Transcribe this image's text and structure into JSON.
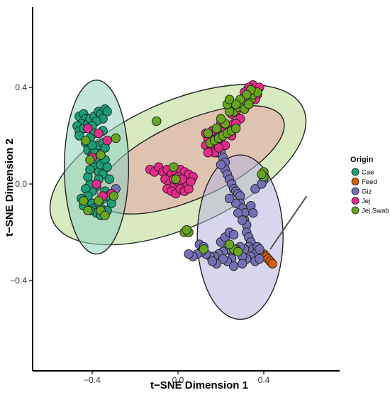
{
  "chart_data": {
    "type": "scatter",
    "xlabel": "t−SNE Dimension 1",
    "ylabel": "t−SNE Dimension 2",
    "xlim": [
      -0.62,
      0.65
    ],
    "ylim": [
      -0.78,
      0.75
    ],
    "x_ticks": [
      -0.4,
      0.0,
      0.4
    ],
    "y_ticks": [
      0.4,
      0.0,
      -0.4
    ],
    "x_tick_labels": [
      "−0.4",
      "0.0",
      "0.4"
    ],
    "y_tick_labels": [
      "0.4",
      "0.0",
      "−0.4"
    ],
    "grid": false,
    "legend": {
      "title": "Origin",
      "position": "right",
      "entries": [
        "Cae",
        "Feed",
        "Giz",
        "Jej",
        "Jej.Swab"
      ]
    },
    "ellipses": [
      {
        "group": "Jej.Swab",
        "cx": 0.0,
        "cy": 0.08,
        "rx": 0.64,
        "ry": 0.26,
        "angle_deg": 24,
        "fill": "#b8d98a"
      },
      {
        "group": "Jej",
        "cx": 0.06,
        "cy": 0.1,
        "rx": 0.47,
        "ry": 0.16,
        "angle_deg": 24,
        "fill": "#e6a2a6"
      },
      {
        "group": "Cae",
        "cx": -0.38,
        "cy": 0.07,
        "rx": 0.15,
        "ry": 0.36,
        "angle_deg": 0,
        "fill": "#8fd0c0"
      },
      {
        "group": "Giz",
        "cx": 0.29,
        "cy": -0.22,
        "rx": 0.2,
        "ry": 0.34,
        "angle_deg": 0,
        "fill": "#b8b4de"
      }
    ],
    "series": [
      {
        "name": "Cae",
        "color": "#1b9e77",
        "points": [
          [
            -0.46,
            0.28
          ],
          [
            -0.44,
            0.29
          ],
          [
            -0.43,
            0.27
          ],
          [
            -0.45,
            0.25
          ],
          [
            -0.47,
            0.24
          ],
          [
            -0.46,
            0.22
          ],
          [
            -0.44,
            0.23
          ],
          [
            -0.42,
            0.25
          ],
          [
            -0.41,
            0.27
          ],
          [
            -0.39,
            0.28
          ],
          [
            -0.37,
            0.3
          ],
          [
            -0.36,
            0.29
          ],
          [
            -0.34,
            0.31
          ],
          [
            -0.33,
            0.3
          ],
          [
            -0.35,
            0.27
          ],
          [
            -0.38,
            0.26
          ],
          [
            -0.4,
            0.24
          ],
          [
            -0.39,
            0.21
          ],
          [
            -0.41,
            0.19
          ],
          [
            -0.43,
            0.17
          ],
          [
            -0.42,
            0.14
          ],
          [
            -0.4,
            0.12
          ],
          [
            -0.39,
            0.14
          ],
          [
            -0.37,
            0.16
          ],
          [
            -0.35,
            0.17
          ],
          [
            -0.34,
            0.15
          ],
          [
            -0.36,
            0.12
          ],
          [
            -0.38,
            0.1
          ],
          [
            -0.39,
            0.07
          ],
          [
            -0.37,
            0.05
          ],
          [
            -0.36,
            0.08
          ],
          [
            -0.34,
            0.1
          ],
          [
            -0.33,
            0.07
          ],
          [
            -0.35,
            0.04
          ],
          [
            -0.37,
            0.02
          ],
          [
            -0.38,
            -0.01
          ],
          [
            -0.4,
            -0.03
          ],
          [
            -0.41,
            0.0
          ],
          [
            -0.42,
            0.03
          ],
          [
            -0.43,
            -0.02
          ],
          [
            -0.42,
            -0.05
          ],
          [
            -0.4,
            -0.08
          ],
          [
            -0.39,
            -0.1
          ],
          [
            -0.37,
            -0.08
          ],
          [
            -0.35,
            -0.06
          ],
          [
            -0.34,
            -0.03
          ],
          [
            -0.33,
            -0.05
          ],
          [
            -0.36,
            -0.1
          ],
          [
            -0.38,
            -0.12
          ],
          [
            -0.41,
            -0.11
          ],
          [
            -0.44,
            -0.09
          ],
          [
            -0.45,
            -0.06
          ],
          [
            -0.36,
            -0.13
          ],
          [
            -0.33,
            -0.11
          ],
          [
            -0.32,
            0.02
          ],
          [
            -0.31,
            -0.08
          ],
          [
            -0.4,
            0.16
          ],
          [
            -0.46,
            0.2
          ],
          [
            -0.35,
            0.22
          ],
          [
            -0.41,
            0.06
          ]
        ]
      },
      {
        "name": "Feed",
        "color": "#d95f02",
        "points": [
          [
            0.4,
            -0.29
          ],
          [
            0.41,
            -0.3
          ],
          [
            0.42,
            -0.31
          ],
          [
            0.43,
            -0.32
          ],
          [
            0.44,
            -0.33
          ]
        ]
      },
      {
        "name": "Giz",
        "color": "#7570b3",
        "points": [
          [
            0.2,
            0.13
          ],
          [
            0.21,
            0.11
          ],
          [
            0.22,
            0.09
          ],
          [
            0.22,
            0.06
          ],
          [
            0.23,
            0.04
          ],
          [
            0.24,
            0.02
          ],
          [
            0.25,
            0.0
          ],
          [
            0.26,
            -0.02
          ],
          [
            0.27,
            -0.03
          ],
          [
            0.28,
            -0.04
          ],
          [
            0.29,
            -0.05
          ],
          [
            0.29,
            -0.08
          ],
          [
            0.3,
            -0.1
          ],
          [
            0.31,
            -0.12
          ],
          [
            0.31,
            -0.15
          ],
          [
            0.32,
            -0.17
          ],
          [
            0.32,
            -0.2
          ],
          [
            0.33,
            -0.22
          ],
          [
            0.34,
            -0.24
          ],
          [
            0.33,
            -0.26
          ],
          [
            0.31,
            -0.27
          ],
          [
            0.29,
            -0.26
          ],
          [
            0.27,
            -0.27
          ],
          [
            0.25,
            -0.28
          ],
          [
            0.23,
            -0.27
          ],
          [
            0.21,
            -0.28
          ],
          [
            0.19,
            -0.29
          ],
          [
            0.17,
            -0.3
          ],
          [
            0.15,
            -0.3
          ],
          [
            0.13,
            -0.29
          ],
          [
            0.11,
            -0.28
          ],
          [
            0.09,
            -0.29
          ],
          [
            0.07,
            -0.3
          ],
          [
            0.05,
            -0.29
          ],
          [
            0.2,
            -0.24
          ],
          [
            0.22,
            -0.22
          ],
          [
            0.24,
            -0.2
          ],
          [
            0.26,
            -0.21
          ],
          [
            0.25,
            -0.31
          ],
          [
            0.23,
            -0.32
          ],
          [
            0.21,
            -0.31
          ],
          [
            0.18,
            -0.33
          ],
          [
            0.16,
            -0.32
          ],
          [
            0.35,
            -0.27
          ],
          [
            0.37,
            -0.26
          ],
          [
            0.38,
            -0.28
          ],
          [
            0.36,
            -0.29
          ],
          [
            0.34,
            -0.3
          ],
          [
            0.32,
            -0.31
          ],
          [
            0.3,
            -0.3
          ],
          [
            0.36,
            -0.32
          ],
          [
            0.38,
            -0.31
          ],
          [
            0.34,
            -0.09
          ],
          [
            0.35,
            -0.12
          ],
          [
            0.36,
            -0.02
          ],
          [
            0.18,
            0.13
          ],
          [
            0.17,
            0.14
          ],
          [
            0.1,
            -0.25
          ],
          [
            0.12,
            -0.26
          ],
          [
            0.26,
            -0.34
          ],
          [
            0.3,
            -0.33
          ],
          [
            0.2,
            0.08
          ],
          [
            0.27,
            -0.08
          ],
          [
            0.28,
            -0.12
          ],
          [
            0.24,
            -0.06
          ],
          [
            0.4,
            0.02
          ],
          [
            0.39,
            0.0
          ],
          [
            0.3,
            -0.15
          ],
          [
            0.38,
            -0.27
          ],
          [
            -0.29,
            -0.02
          ]
        ]
      },
      {
        "name": "Jej",
        "color": "#e7298a",
        "points": [
          [
            -0.42,
            0.23
          ],
          [
            -0.37,
            0.21
          ],
          [
            -0.4,
            0.11
          ],
          [
            -0.33,
            0.18
          ],
          [
            -0.38,
            0.0
          ],
          [
            -0.31,
            -0.04
          ],
          [
            -0.35,
            -0.05
          ],
          [
            -0.13,
            0.06
          ],
          [
            -0.11,
            0.05
          ],
          [
            -0.09,
            0.07
          ],
          [
            -0.07,
            0.05
          ],
          [
            -0.05,
            0.06
          ],
          [
            -0.03,
            0.04
          ],
          [
            -0.01,
            0.05
          ],
          [
            0.01,
            0.06
          ],
          [
            0.03,
            0.05
          ],
          [
            0.05,
            0.04
          ],
          [
            0.07,
            0.03
          ],
          [
            -0.06,
            0.02
          ],
          [
            -0.04,
            0.0
          ],
          [
            -0.02,
            -0.01
          ],
          [
            0.0,
            0.01
          ],
          [
            0.02,
            0.0
          ],
          [
            0.04,
            -0.01
          ],
          [
            -0.05,
            -0.02
          ],
          [
            -0.03,
            -0.03
          ],
          [
            -0.01,
            -0.04
          ],
          [
            0.01,
            -0.02
          ],
          [
            0.03,
            -0.03
          ],
          [
            0.05,
            -0.02
          ],
          [
            0.0,
            0.03
          ],
          [
            0.02,
            0.02
          ],
          [
            -0.02,
            0.02
          ],
          [
            0.06,
            0.01
          ],
          [
            0.17,
            0.2
          ],
          [
            0.19,
            0.21
          ],
          [
            0.21,
            0.2
          ],
          [
            0.2,
            0.17
          ],
          [
            0.22,
            0.16
          ],
          [
            0.18,
            0.16
          ],
          [
            0.15,
            0.17
          ],
          [
            0.14,
            0.19
          ],
          [
            0.13,
            0.16
          ],
          [
            0.15,
            0.14
          ],
          [
            0.17,
            0.13
          ],
          [
            0.19,
            0.15
          ],
          [
            0.22,
            0.23
          ],
          [
            0.24,
            0.24
          ],
          [
            0.26,
            0.25
          ],
          [
            0.2,
            0.25
          ],
          [
            0.18,
            0.23
          ],
          [
            0.25,
            0.29
          ],
          [
            0.27,
            0.3
          ],
          [
            0.29,
            0.32
          ],
          [
            0.3,
            0.34
          ],
          [
            0.32,
            0.36
          ],
          [
            0.34,
            0.38
          ],
          [
            0.36,
            0.39
          ],
          [
            0.35,
            0.41
          ],
          [
            0.33,
            0.4
          ],
          [
            0.31,
            0.38
          ],
          [
            0.37,
            0.37
          ],
          [
            0.38,
            0.4
          ],
          [
            0.36,
            0.35
          ],
          [
            0.29,
            0.27
          ],
          [
            0.27,
            0.25
          ],
          [
            0.16,
            0.22
          ],
          [
            0.14,
            0.13
          ],
          [
            0.13,
            0.21
          ],
          [
            0.25,
            0.2
          ],
          [
            0.23,
            0.21
          ]
        ]
      },
      {
        "name": "Jej.Swab",
        "color": "#66a61e",
        "points": [
          [
            -0.41,
            0.1
          ],
          [
            -0.43,
            0.18
          ],
          [
            -0.36,
            0.12
          ],
          [
            -0.42,
            -0.11
          ],
          [
            -0.37,
            -0.07
          ],
          [
            -0.36,
            -0.11
          ],
          [
            -0.3,
            -0.05
          ],
          [
            -0.34,
            -0.13
          ],
          [
            -0.44,
            -0.07
          ],
          [
            -0.29,
            0.19
          ],
          [
            -0.1,
            0.26
          ],
          [
            -0.02,
            0.07
          ],
          [
            -0.01,
            0.02
          ],
          [
            0.03,
            -0.2
          ],
          [
            0.05,
            -0.2
          ],
          [
            0.04,
            -0.19
          ],
          [
            0.12,
            -0.27
          ],
          [
            0.15,
            0.17
          ],
          [
            0.17,
            0.18
          ],
          [
            0.19,
            0.19
          ],
          [
            0.21,
            0.2
          ],
          [
            0.23,
            0.21
          ],
          [
            0.25,
            0.22
          ],
          [
            0.27,
            0.23
          ],
          [
            0.14,
            0.21
          ],
          [
            0.18,
            0.23
          ],
          [
            0.22,
            0.25
          ],
          [
            0.26,
            0.3
          ],
          [
            0.28,
            0.32
          ],
          [
            0.3,
            0.33
          ],
          [
            0.32,
            0.34
          ],
          [
            0.34,
            0.35
          ],
          [
            0.35,
            0.37
          ],
          [
            0.37,
            0.38
          ],
          [
            0.34,
            0.39
          ],
          [
            0.32,
            0.37
          ],
          [
            0.29,
            0.35
          ],
          [
            0.27,
            0.33
          ],
          [
            0.24,
            0.3
          ],
          [
            0.23,
            0.33
          ],
          [
            0.24,
            0.35
          ],
          [
            0.31,
            0.31
          ],
          [
            0.33,
            0.33
          ],
          [
            0.2,
            0.27
          ],
          [
            0.4,
            0.05
          ],
          [
            0.4,
            0.03
          ],
          [
            0.39,
            0.04
          ],
          [
            0.26,
            -0.27
          ],
          [
            0.28,
            -0.28
          ],
          [
            0.24,
            -0.25
          ]
        ]
      }
    ],
    "connector_line": {
      "from": [
        0.43,
        -0.27
      ],
      "to": [
        0.6,
        -0.05
      ]
    }
  }
}
